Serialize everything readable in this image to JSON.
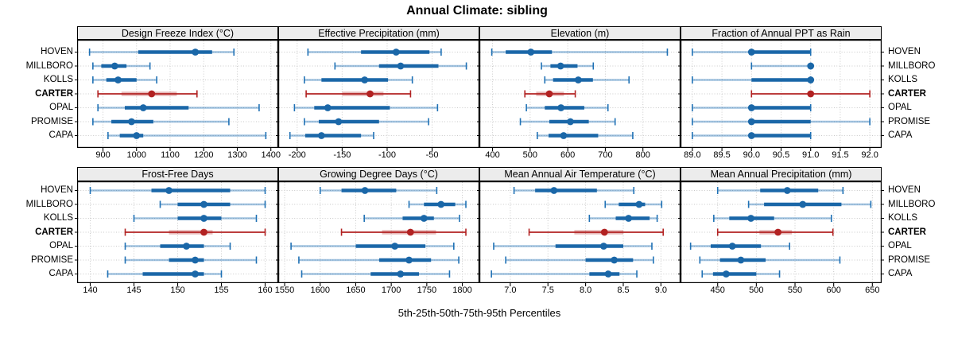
{
  "title": "Annual Climate: sibling",
  "xlabel": "5th-25th-50th-75th-95th Percentiles",
  "sites": [
    "HOVEN",
    "MILLBORO",
    "KOLLS",
    "CARTER",
    "OPAL",
    "PROMISE",
    "CAPA"
  ],
  "highlight_site": "CARTER",
  "colors": {
    "blue": "#1f71b5",
    "blue_dark": "#1a67a8",
    "blue_light": "rgba(31,113,181,0.42)",
    "red": "#b22222",
    "red_light": "rgba(178,34,34,0.32)",
    "strip_bg": "#ececec",
    "grid": "#c9c9c9",
    "panel_border": "#000000"
  },
  "chart_data": {
    "type": "scatter",
    "variant": "lattice-style dot-and-whisker percentile plot, 2x4 panel grid, one row per site",
    "percentile_labels": [
      "5th",
      "25th",
      "50th",
      "75th",
      "95th"
    ],
    "categories": [
      "HOVEN",
      "MILLBORO",
      "KOLLS",
      "CARTER",
      "OPAL",
      "PROMISE",
      "CAPA"
    ],
    "legend_position": "none",
    "grid": "dotted",
    "panels": [
      {
        "title": "Design Freeze Index (°C)",
        "grid_row": 0,
        "grid_col": 0,
        "xlim": [
          823,
          1422
        ],
        "ticks": [
          900,
          1000,
          1100,
          1200,
          1300,
          1400
        ],
        "tick_labels": [
          "900",
          "1000",
          "1100",
          "1200",
          "1300",
          "1400"
        ],
        "series": [
          {
            "name": "HOVEN",
            "percentiles": [
              860,
              1005,
              1175,
              1225,
              1290
            ]
          },
          {
            "name": "MILLBORO",
            "percentiles": [
              870,
              895,
              935,
              970,
              1040
            ]
          },
          {
            "name": "KOLLS",
            "percentiles": [
              870,
              910,
              945,
              1000,
              1060
            ]
          },
          {
            "name": "CARTER",
            "percentiles": [
              885,
              955,
              1045,
              1120,
              1180
            ]
          },
          {
            "name": "OPAL",
            "percentiles": [
              885,
              965,
              1020,
              1155,
              1365
            ]
          },
          {
            "name": "PROMISE",
            "percentiles": [
              870,
              925,
              985,
              1050,
              1275
            ]
          },
          {
            "name": "CAPA",
            "percentiles": [
              915,
              950,
              1000,
              1020,
              1385
            ]
          }
        ]
      },
      {
        "title": "Effective Precipitation (mm)",
        "grid_row": 0,
        "grid_col": 1,
        "xlim": [
          -221,
          2.5
        ],
        "ticks": [
          -200,
          -150,
          -100,
          -50
        ],
        "tick_labels": [
          "-200",
          "-150",
          "-100",
          "-50"
        ],
        "series": [
          {
            "name": "HOVEN",
            "percentiles": [
              -188,
              -129,
              -90,
              -53,
              -40
            ]
          },
          {
            "name": "MILLBORO",
            "percentiles": [
              -158,
              -109,
              -85,
              -43,
              -12
            ]
          },
          {
            "name": "KOLLS",
            "percentiles": [
              -192,
              -173,
              -125,
              -99,
              -72
            ]
          },
          {
            "name": "CARTER",
            "percentiles": [
              -190,
              -150,
              -119,
              -104,
              -74
            ]
          },
          {
            "name": "OPAL",
            "percentiles": [
              -203,
              -181,
              -166,
              -97,
              -44
            ]
          },
          {
            "name": "PROMISE",
            "percentiles": [
              -192,
              -176,
              -154,
              -109,
              -54
            ]
          },
          {
            "name": "CAPA",
            "percentiles": [
              -208,
              -191,
              -173,
              -129,
              -115
            ]
          }
        ]
      },
      {
        "title": "Elevation (m)",
        "grid_row": 0,
        "grid_col": 2,
        "xlim": [
          365,
          900
        ],
        "ticks": [
          400,
          500,
          600,
          700,
          800
        ],
        "tick_labels": [
          "400",
          "500",
          "600",
          "700",
          "800"
        ],
        "series": [
          {
            "name": "HOVEN",
            "percentiles": [
              398,
              435,
              502,
              558,
              865
            ]
          },
          {
            "name": "MILLBORO",
            "percentiles": [
              530,
              554,
              581,
              626,
              668
            ]
          },
          {
            "name": "KOLLS",
            "percentiles": [
              539,
              561,
              628,
              667,
              763
            ]
          },
          {
            "name": "CARTER",
            "percentiles": [
              486,
              516,
              551,
              590,
              620
            ]
          },
          {
            "name": "OPAL",
            "percentiles": [
              490,
              539,
              582,
              644,
              707
            ]
          },
          {
            "name": "PROMISE",
            "percentiles": [
              474,
              551,
              607,
              656,
              726
            ]
          },
          {
            "name": "CAPA",
            "percentiles": [
              519,
              549,
              589,
              681,
              773
            ]
          }
        ]
      },
      {
        "title": "Fraction of Annual PPT as Rain",
        "grid_row": 0,
        "grid_col": 3,
        "xlim": [
          88.8,
          92.2
        ],
        "ticks": [
          89.0,
          89.5,
          90.0,
          90.5,
          91.0,
          91.5,
          92.0
        ],
        "tick_labels": [
          "89.0",
          "89.5",
          "90.0",
          "90.5",
          "91.0",
          "91.5",
          "92.0"
        ],
        "series": [
          {
            "name": "HOVEN",
            "percentiles": [
              89,
              90,
              90,
              91,
              91
            ]
          },
          {
            "name": "MILLBORO",
            "percentiles": [
              90,
              91,
              91,
              91,
              91
            ]
          },
          {
            "name": "KOLLS",
            "percentiles": [
              89,
              90,
              91,
              91,
              91
            ]
          },
          {
            "name": "CARTER",
            "percentiles": [
              90,
              91,
              91,
              91,
              92
            ]
          },
          {
            "name": "OPAL",
            "percentiles": [
              89,
              90,
              90,
              91,
              91
            ]
          },
          {
            "name": "PROMISE",
            "percentiles": [
              89,
              90,
              90,
              91,
              92
            ]
          },
          {
            "name": "CAPA",
            "percentiles": [
              89,
              90,
              90,
              91,
              91
            ]
          }
        ]
      },
      {
        "title": "Frost-Free Days",
        "grid_row": 1,
        "grid_col": 0,
        "xlim": [
          138.5,
          161.5
        ],
        "ticks": [
          140,
          145,
          150,
          155,
          160
        ],
        "tick_labels": [
          "140",
          "145",
          "150",
          "155",
          "160"
        ],
        "series": [
          {
            "name": "HOVEN",
            "percentiles": [
              140,
              147,
              149,
              156,
              160
            ]
          },
          {
            "name": "MILLBORO",
            "percentiles": [
              148,
              150,
              153,
              156,
              160
            ]
          },
          {
            "name": "KOLLS",
            "percentiles": [
              145,
              150,
              153,
              155,
              159
            ]
          },
          {
            "name": "CARTER",
            "percentiles": [
              144,
              149,
              153,
              154,
              160
            ]
          },
          {
            "name": "OPAL",
            "percentiles": [
              144,
              148,
              151,
              153,
              156
            ]
          },
          {
            "name": "PROMISE",
            "percentiles": [
              144,
              149,
              152,
              153,
              159
            ]
          },
          {
            "name": "CAPA",
            "percentiles": [
              142,
              146,
              152,
              153,
              155
            ]
          }
        ]
      },
      {
        "title": "Growing Degree Days (°C)",
        "grid_row": 1,
        "grid_col": 1,
        "xlim": [
          1541,
          1824
        ],
        "ticks": [
          1550,
          1600,
          1650,
          1700,
          1750,
          1800
        ],
        "tick_labels": [
          "1550",
          "1600",
          "1650",
          "1700",
          "1750",
          "1800"
        ],
        "series": [
          {
            "name": "HOVEN",
            "percentiles": [
              1600,
              1630,
              1663,
              1707,
              1764
            ]
          },
          {
            "name": "MILLBORO",
            "percentiles": [
              1725,
              1746,
              1770,
              1790,
              1805
            ]
          },
          {
            "name": "KOLLS",
            "percentiles": [
              1662,
              1716,
              1746,
              1760,
              1796
            ]
          },
          {
            "name": "CARTER",
            "percentiles": [
              1630,
              1687,
              1727,
              1763,
              1805
            ]
          },
          {
            "name": "OPAL",
            "percentiles": [
              1559,
              1650,
              1705,
              1748,
              1788
            ]
          },
          {
            "name": "PROMISE",
            "percentiles": [
              1570,
              1683,
              1725,
              1756,
              1795
            ]
          },
          {
            "name": "CAPA",
            "percentiles": [
              1574,
              1671,
              1713,
              1739,
              1782
            ]
          }
        ]
      },
      {
        "title": "Mean Annual Air Temperature (°C)",
        "grid_row": 1,
        "grid_col": 2,
        "xlim": [
          6.59,
          9.26
        ],
        "ticks": [
          7.0,
          7.5,
          8.0,
          8.5,
          9.0
        ],
        "tick_labels": [
          "7.0",
          "7.5",
          "8.0",
          "8.5",
          "9.0"
        ],
        "series": [
          {
            "name": "HOVEN",
            "percentiles": [
              7.05,
              7.33,
              7.58,
              8.15,
              8.64
            ]
          },
          {
            "name": "MILLBORO",
            "percentiles": [
              8.26,
              8.44,
              8.71,
              8.79,
              9.01
            ]
          },
          {
            "name": "KOLLS",
            "percentiles": [
              8.05,
              8.4,
              8.57,
              8.85,
              8.95
            ]
          },
          {
            "name": "CARTER",
            "percentiles": [
              7.25,
              7.85,
              8.25,
              8.5,
              9.03
            ]
          },
          {
            "name": "OPAL",
            "percentiles": [
              6.78,
              7.6,
              8.24,
              8.5,
              8.88
            ]
          },
          {
            "name": "PROMISE",
            "percentiles": [
              6.94,
              8.0,
              8.38,
              8.63,
              8.9
            ]
          },
          {
            "name": "CAPA",
            "percentiles": [
              6.75,
              8.05,
              8.3,
              8.45,
              8.68
            ]
          }
        ]
      },
      {
        "title": "Mean Annual Precipitation (mm)",
        "grid_row": 1,
        "grid_col": 3,
        "xlim": [
          402,
          662
        ],
        "ticks": [
          450,
          500,
          550,
          600,
          650
        ],
        "tick_labels": [
          "450",
          "500",
          "550",
          "600",
          "650"
        ],
        "series": [
          {
            "name": "HOVEN",
            "percentiles": [
              450,
              505,
              540,
              580,
              612
            ]
          },
          {
            "name": "MILLBORO",
            "percentiles": [
              490,
              510,
              560,
              610,
              648
            ]
          },
          {
            "name": "KOLLS",
            "percentiles": [
              445,
              465,
              493,
              523,
              597
            ]
          },
          {
            "name": "CARTER",
            "percentiles": [
              450,
              504,
              528,
              546,
              599
            ]
          },
          {
            "name": "OPAL",
            "percentiles": [
              415,
              441,
              469,
              506,
              543
            ]
          },
          {
            "name": "PROMISE",
            "percentiles": [
              427,
              453,
              480,
              512,
              608
            ]
          },
          {
            "name": "CAPA",
            "percentiles": [
              430,
              444,
              461,
              500,
              530
            ]
          }
        ]
      }
    ]
  }
}
